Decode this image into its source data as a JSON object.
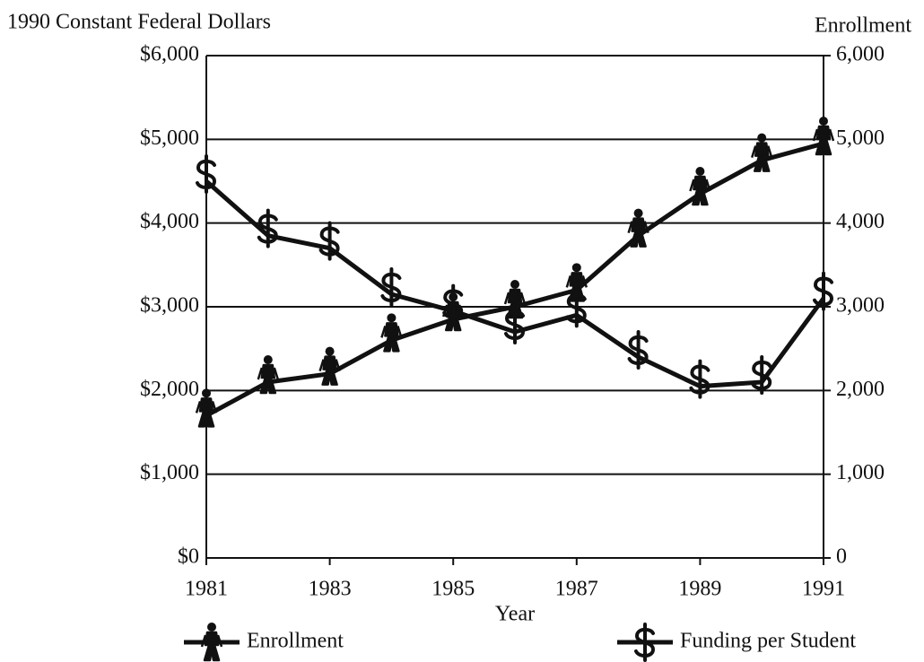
{
  "chart_data": {
    "type": "line",
    "y_label": "1990 Constant Federal Dollars",
    "y2_label": "Enrollment",
    "x_label": "Year",
    "x": [
      1981,
      1982,
      1983,
      1984,
      1985,
      1986,
      1987,
      1988,
      1989,
      1990,
      1991
    ],
    "xlim": [
      1981,
      1991
    ],
    "xticks": [
      1981,
      1983,
      1985,
      1987,
      1989,
      1991
    ],
    "ylim": [
      0,
      6000
    ],
    "yticks": [
      {
        "value": 0,
        "label": "$0"
      },
      {
        "value": 1000,
        "label": "$1,000"
      },
      {
        "value": 2000,
        "label": "$2,000"
      },
      {
        "value": 3000,
        "label": "$3,000"
      },
      {
        "value": 4000,
        "label": "$4,000"
      },
      {
        "value": 5000,
        "label": "$5,000"
      },
      {
        "value": 6000,
        "label": "$6,000"
      }
    ],
    "y2lim": [
      0,
      6000
    ],
    "y2ticks": [
      0,
      {
        "value": 1000,
        "label": "1,000"
      },
      {
        "value": 2000,
        "label": "2,000"
      },
      {
        "value": 3000,
        "label": "3,000"
      },
      {
        "value": 4000,
        "label": "4,000"
      },
      {
        "value": 5000,
        "label": "5,000"
      },
      {
        "value": 6000,
        "label": "6,000"
      }
    ],
    "grid": true,
    "legend": "bottom",
    "series": [
      {
        "name": "Enrollment",
        "color": "#111111",
        "axis": "y2",
        "marker": "person",
        "values": [
          1700,
          2100,
          2200,
          2600,
          2850,
          3000,
          3200,
          3850,
          4350,
          4750,
          4950
        ]
      },
      {
        "name": "Funding per Student",
        "color": "#111111",
        "marker": "dollar",
        "values": [
          4500,
          3850,
          3700,
          3150,
          2950,
          2700,
          2900,
          2400,
          2050,
          2100,
          3100
        ]
      }
    ]
  }
}
